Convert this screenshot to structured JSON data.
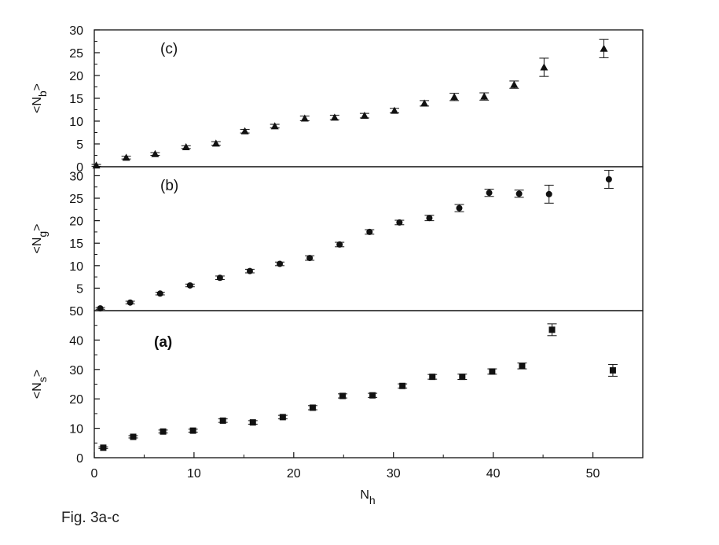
{
  "caption": "Fig. 3a-c",
  "chart_data": [
    {
      "type": "scatter",
      "panel_label": "(c)",
      "ylabel_main": "<N",
      "ylabel_sub": "b",
      "ylabel_close": ">",
      "ylim": [
        0,
        30
      ],
      "yticks": [
        0,
        5,
        10,
        15,
        20,
        25,
        30
      ],
      "xlim": [
        0,
        55
      ],
      "marker": "triangle",
      "series": [
        {
          "x": [
            0.2,
            3.2,
            6.1,
            9.2,
            12.2,
            15.1,
            18.1,
            21.1,
            24.1,
            27.1,
            30.1,
            33.1,
            36.1,
            39.1,
            42.1,
            45.1,
            51.1
          ],
          "y": [
            0.3,
            2.0,
            2.8,
            4.3,
            5.1,
            7.8,
            8.9,
            10.6,
            10.8,
            11.2,
            12.3,
            13.9,
            15.3,
            15.4,
            18.0,
            21.8,
            25.9
          ],
          "yerr": [
            0.2,
            0.3,
            0.3,
            0.3,
            0.4,
            0.4,
            0.4,
            0.5,
            0.5,
            0.5,
            0.5,
            0.6,
            0.8,
            0.8,
            0.8,
            2.0,
            2.0
          ]
        }
      ]
    },
    {
      "type": "scatter",
      "panel_label": "(b)",
      "ylabel_main": "<N",
      "ylabel_sub": "g",
      "ylabel_close": ">",
      "ylim": [
        0,
        32
      ],
      "yticks": [
        5,
        10,
        15,
        20,
        25,
        30
      ],
      "xlim": [
        0,
        55
      ],
      "marker": "circle",
      "series": [
        {
          "x": [
            0.6,
            3.6,
            6.6,
            9.6,
            12.6,
            15.6,
            18.6,
            21.6,
            24.6,
            27.6,
            30.6,
            33.6,
            36.6,
            39.6,
            42.6,
            45.6,
            51.6
          ],
          "y": [
            0.5,
            1.8,
            3.8,
            5.6,
            7.3,
            8.8,
            10.4,
            11.7,
            14.7,
            17.5,
            19.6,
            20.6,
            22.8,
            26.2,
            26.0,
            25.9,
            29.2
          ],
          "yerr": [
            0.2,
            0.3,
            0.3,
            0.3,
            0.4,
            0.4,
            0.4,
            0.5,
            0.5,
            0.5,
            0.5,
            0.6,
            0.8,
            0.8,
            0.8,
            2.0,
            2.0
          ]
        }
      ]
    },
    {
      "type": "scatter",
      "panel_label": "(a)",
      "ylabel_main": "<N",
      "ylabel_sub": "s",
      "ylabel_close": ">",
      "ylim": [
        0,
        50
      ],
      "yticks": [
        0,
        10,
        20,
        30,
        40,
        50
      ],
      "xlim": [
        0,
        55
      ],
      "xticks": [
        0,
        10,
        20,
        30,
        40,
        50
      ],
      "xlabel_main": "N",
      "xlabel_sub": "h",
      "marker": "square",
      "series": [
        {
          "x": [
            0.9,
            3.9,
            6.9,
            9.9,
            12.9,
            15.9,
            18.9,
            21.9,
            24.9,
            27.9,
            30.9,
            33.9,
            36.9,
            39.9,
            42.9,
            45.9,
            52.0
          ],
          "y": [
            3.4,
            7.1,
            8.9,
            9.2,
            12.6,
            12.0,
            13.8,
            17.0,
            21.0,
            21.2,
            24.4,
            27.5,
            27.5,
            29.3,
            31.2,
            43.5,
            29.7
          ],
          "yerr": [
            0.3,
            0.4,
            0.5,
            0.5,
            0.6,
            0.6,
            0.6,
            0.7,
            0.7,
            0.7,
            0.7,
            0.8,
            0.9,
            0.9,
            1.0,
            2.0,
            2.0
          ]
        }
      ]
    }
  ]
}
